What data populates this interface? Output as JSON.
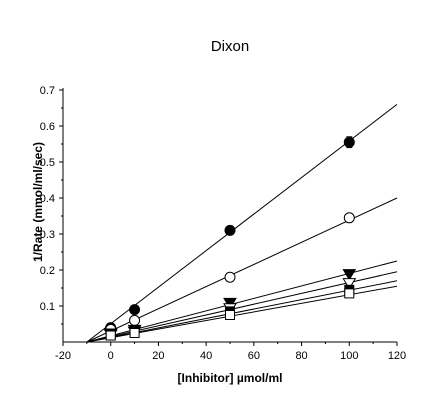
{
  "chart_data": {
    "type": "line",
    "title": "Dixon",
    "xlabel": "[Inhibitor] µmol/ml",
    "ylabel": "1/Rate (mmol/ml/sec)",
    "xlim": [
      -20,
      120
    ],
    "ylim": [
      0,
      0.7
    ],
    "xticks": [
      "-20",
      "0",
      "20",
      "40",
      "60",
      "80",
      "100",
      "120"
    ],
    "yticks": [
      "0.1",
      "0.2",
      "0.3",
      "0.4",
      "0.5",
      "0.6",
      "0.7"
    ],
    "x": [
      0,
      10,
      50,
      100
    ],
    "series": [
      {
        "marker": "filled-circle",
        "values": [
          0.04,
          0.09,
          0.31,
          0.555
        ],
        "error": [
          0,
          0,
          0,
          0.015
        ],
        "fit": {
          "x0": -10,
          "x1": 120,
          "y1": 0.66
        }
      },
      {
        "marker": "open-circle",
        "values": [
          0.035,
          0.06,
          0.18,
          0.345
        ],
        "fit": {
          "x0": -10,
          "x1": 120,
          "y1": 0.4
        }
      },
      {
        "marker": "filled-triangle-down",
        "values": [
          0.025,
          0.035,
          0.11,
          0.19
        ],
        "fit": {
          "x0": -10,
          "x1": 120,
          "y1": 0.225
        }
      },
      {
        "marker": "open-triangle-down",
        "values": [
          0.022,
          0.03,
          0.095,
          0.165
        ],
        "fit": {
          "x0": -10,
          "x1": 120,
          "y1": 0.195
        }
      },
      {
        "marker": "filled-square",
        "values": [
          0.02,
          0.028,
          0.085,
          0.145
        ],
        "fit": {
          "x0": -10,
          "x1": 120,
          "y1": 0.17
        }
      },
      {
        "marker": "open-square",
        "values": [
          0.018,
          0.025,
          0.075,
          0.135
        ],
        "fit": {
          "x0": -10,
          "x1": 120,
          "y1": 0.155
        }
      }
    ]
  }
}
